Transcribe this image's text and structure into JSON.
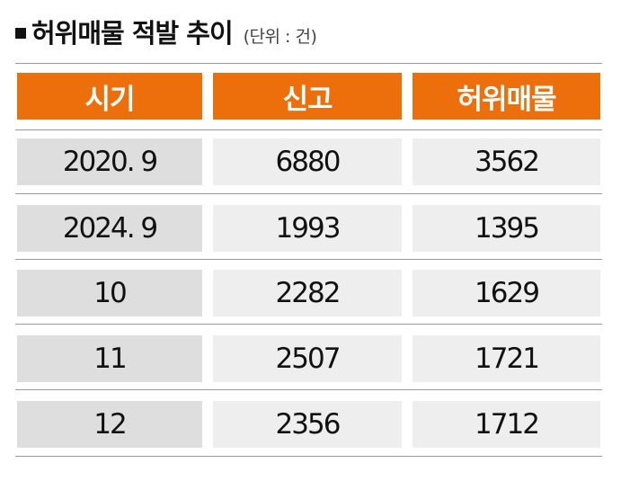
{
  "title": "허위매물 적발 추이",
  "unit_note": "(단위 : 건)",
  "colors": {
    "header_bg": "#ec6f0b",
    "header_text": "#ffffff",
    "first_col_bg": "#dedede",
    "cell_bg": "#eeeeee"
  },
  "chart_data": {
    "type": "table",
    "title": "허위매물 적발 추이",
    "unit": "(단위 : 건)",
    "columns": [
      "시기",
      "신고",
      "허위매물"
    ],
    "rows": [
      [
        "2020. 9",
        "6880",
        "3562"
      ],
      [
        "2024. 9",
        "1993",
        "1395"
      ],
      [
        "10",
        "2282",
        "1629"
      ],
      [
        "11",
        "2507",
        "1721"
      ],
      [
        "12",
        "2356",
        "1712"
      ]
    ]
  }
}
